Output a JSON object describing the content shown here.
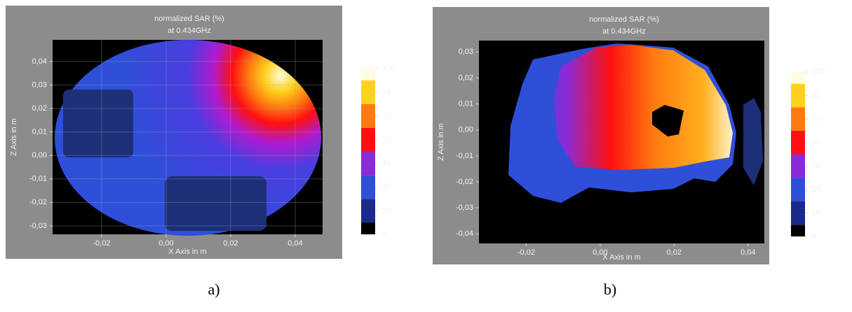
{
  "chart_data": [
    {
      "type": "contour",
      "caption": "a)",
      "title": "normalized SAR (%)",
      "subtitle": "at 0.434GHz",
      "x_label": "X Axis in m",
      "y_label": "Z Axis in m",
      "xlim": [
        -0.0352,
        0.0485
      ],
      "ylim": [
        -0.0336,
        0.0492
      ],
      "xticks": [
        {
          "value": -0.02,
          "label": "-0,02"
        },
        {
          "value": 0,
          "label": "0,00"
        },
        {
          "value": 0.02,
          "label": "0,02"
        },
        {
          "value": 0.04,
          "label": "0,04"
        }
      ],
      "yticks": [
        {
          "value": -0.03,
          "label": "-0,03"
        },
        {
          "value": -0.02,
          "label": "-0,02"
        },
        {
          "value": -0.01,
          "label": "-0,01"
        },
        {
          "value": 0,
          "label": "0,00"
        },
        {
          "value": 0.01,
          "label": "0,01"
        },
        {
          "value": 0.02,
          "label": "0,02"
        },
        {
          "value": 0.03,
          "label": "0,03"
        },
        {
          "value": 0.04,
          "label": "0,04"
        }
      ],
      "grid": true,
      "colorbar_ticks": [
        0,
        10,
        25,
        40,
        55,
        70,
        85,
        100
      ],
      "colorscale": [
        "#000000",
        "#1a2a8a",
        "#2e4fd8",
        "#8a2ad8",
        "#ff1010",
        "#ff7a10",
        "#ffd21e",
        "#fffbe0"
      ]
    },
    {
      "type": "contour",
      "caption": "b)",
      "title": "normalized SAR (%)",
      "subtitle": "at 0.434GHz",
      "x_label": "X Axis in m",
      "y_label": "Z Axis in m",
      "xlim": [
        -0.0328,
        0.0444
      ],
      "ylim": [
        -0.0437,
        0.0344
      ],
      "xticks": [
        {
          "value": -0.02,
          "label": "-0,02"
        },
        {
          "value": 0,
          "label": "0,00"
        },
        {
          "value": 0.02,
          "label": "0,02"
        },
        {
          "value": 0.04,
          "label": "0,04"
        }
      ],
      "yticks": [
        {
          "value": -0.04,
          "label": "-0,04"
        },
        {
          "value": -0.03,
          "label": "-0,03"
        },
        {
          "value": -0.02,
          "label": "-0,02"
        },
        {
          "value": -0.01,
          "label": "-0,01"
        },
        {
          "value": 0,
          "label": "0,00"
        },
        {
          "value": 0.01,
          "label": "0,01"
        },
        {
          "value": 0.02,
          "label": "0,02"
        },
        {
          "value": 0.03,
          "label": "0,03"
        }
      ],
      "grid": false,
      "colorbar_ticks": [
        0,
        10,
        25,
        40,
        55,
        70,
        85,
        100
      ],
      "colorscale": [
        "#000000",
        "#1a2a8a",
        "#2e4fd8",
        "#8a2ad8",
        "#ff1010",
        "#ff7a10",
        "#ffd21e",
        "#fffbe0"
      ]
    }
  ]
}
